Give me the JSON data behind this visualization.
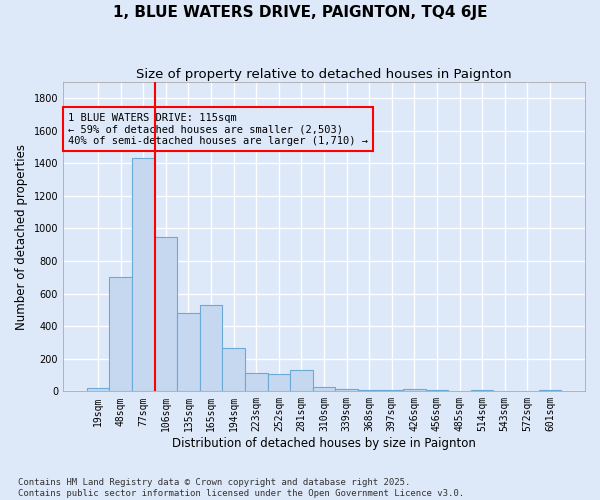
{
  "title": "1, BLUE WATERS DRIVE, PAIGNTON, TQ4 6JE",
  "subtitle": "Size of property relative to detached houses in Paignton",
  "xlabel": "Distribution of detached houses by size in Paignton",
  "ylabel": "Number of detached properties",
  "footnote1": "Contains HM Land Registry data © Crown copyright and database right 2025.",
  "footnote2": "Contains public sector information licensed under the Open Government Licence v3.0.",
  "bar_labels": [
    "19sqm",
    "48sqm",
    "77sqm",
    "106sqm",
    "135sqm",
    "165sqm",
    "194sqm",
    "223sqm",
    "252sqm",
    "281sqm",
    "310sqm",
    "339sqm",
    "368sqm",
    "397sqm",
    "426sqm",
    "456sqm",
    "485sqm",
    "514sqm",
    "543sqm",
    "572sqm",
    "601sqm"
  ],
  "bar_values": [
    20,
    700,
    1430,
    950,
    480,
    530,
    265,
    110,
    105,
    130,
    25,
    15,
    10,
    10,
    15,
    10,
    5,
    10,
    5,
    3,
    10
  ],
  "bar_color": "#c5d8f0",
  "bar_edge_color": "#6aaad4",
  "vline_x": 3.0,
  "vline_color": "red",
  "vline_label_title": "1 BLUE WATERS DRIVE: 115sqm",
  "vline_label_line2": "← 59% of detached houses are smaller (2,503)",
  "vline_label_line3": "40% of semi-detached houses are larger (1,710) →",
  "annotation_box_color": "red",
  "ylim": [
    0,
    1900
  ],
  "yticks": [
    0,
    200,
    400,
    600,
    800,
    1000,
    1200,
    1400,
    1600,
    1800
  ],
  "bg_color": "#dde8f8",
  "plot_bg_color": "#dde8f8",
  "grid_color": "#ffffff",
  "title_fontsize": 11,
  "subtitle_fontsize": 9.5,
  "axis_label_fontsize": 8.5,
  "tick_fontsize": 7,
  "footnote_fontsize": 6.5
}
